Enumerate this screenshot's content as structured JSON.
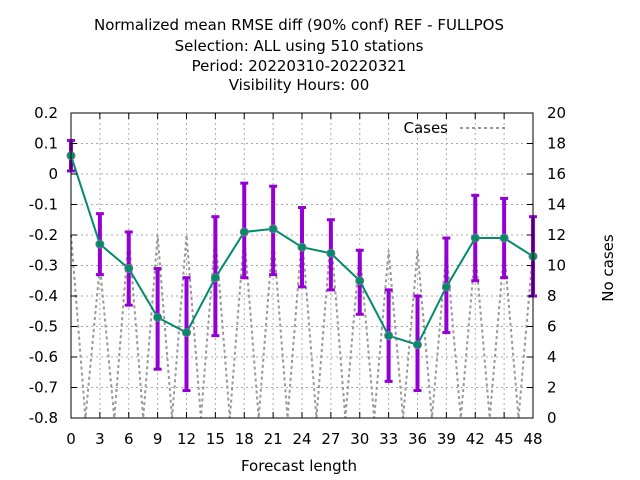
{
  "chart_data": {
    "type": "line",
    "title_lines": [
      "Normalized mean RMSE diff (90% conf) REF - FULLPOS",
      "Selection: ALL using   510 stations",
      "Period: 20220310-20220321",
      "Visibility   Hours:  00"
    ],
    "xlabel": "Forecast length",
    "ylabel": "",
    "y2label": "No cases",
    "xlim": [
      0,
      48
    ],
    "ylim": [
      -0.8,
      0.2
    ],
    "y2lim": [
      0,
      20
    ],
    "xticks": [
      0,
      3,
      6,
      9,
      12,
      15,
      18,
      21,
      24,
      27,
      30,
      33,
      36,
      39,
      42,
      45,
      48
    ],
    "yticks": [
      0.2,
      0.1,
      0,
      -0.1,
      -0.2,
      -0.3,
      -0.4,
      -0.5,
      -0.6,
      -0.7,
      -0.8
    ],
    "yticklabels": [
      "0.2",
      "0.1",
      "0",
      "-0.1",
      "-0.2",
      "-0.3",
      "-0.4",
      "-0.5",
      "-0.6",
      "-0.7",
      "-0.8"
    ],
    "y2ticks": [
      20,
      18,
      16,
      14,
      12,
      10,
      8,
      6,
      4,
      2,
      0
    ],
    "grid": true,
    "legend_position": "top-right",
    "x": [
      0,
      3,
      6,
      9,
      12,
      15,
      18,
      21,
      24,
      27,
      30,
      33,
      36,
      39,
      42,
      45,
      48
    ],
    "mean": [
      0.06,
      -0.23,
      -0.31,
      -0.47,
      -0.52,
      -0.34,
      -0.19,
      -0.18,
      -0.24,
      -0.26,
      -0.35,
      -0.53,
      -0.56,
      -0.37,
      -0.21,
      -0.21,
      -0.27
    ],
    "err_low": [
      0.01,
      -0.33,
      -0.43,
      -0.64,
      -0.71,
      -0.53,
      -0.34,
      -0.33,
      -0.37,
      -0.38,
      -0.46,
      -0.68,
      -0.71,
      -0.52,
      -0.35,
      -0.34,
      -0.4
    ],
    "err_high": [
      0.11,
      -0.13,
      -0.19,
      -0.31,
      -0.34,
      -0.14,
      -0.03,
      -0.04,
      -0.11,
      -0.15,
      -0.25,
      -0.38,
      -0.4,
      -0.21,
      -0.07,
      -0.08,
      -0.14
    ],
    "cases_series": {
      "name": "Cases",
      "x": [
        0,
        1.5,
        3,
        4.5,
        6,
        7.5,
        9,
        10.5,
        12,
        13.5,
        15,
        16.5,
        18,
        19.5,
        21,
        22.5,
        24,
        25.5,
        27,
        28.5,
        30,
        31.5,
        33,
        34.5,
        36,
        37.5,
        39,
        40.5,
        42,
        43.5,
        45,
        46.5,
        48
      ],
      "values": [
        12,
        0,
        10,
        0,
        12,
        0,
        12,
        0,
        12,
        0,
        12,
        0,
        12,
        0,
        12,
        0,
        12,
        0,
        12,
        0,
        11,
        0,
        11,
        0,
        11,
        0,
        11,
        0,
        11,
        0,
        11,
        0,
        11
      ]
    },
    "colors": {
      "mean_line": "#008b6b",
      "error_bars": "#9400d3",
      "cases_line": "#999999",
      "grid": "#aaaaaa"
    }
  }
}
